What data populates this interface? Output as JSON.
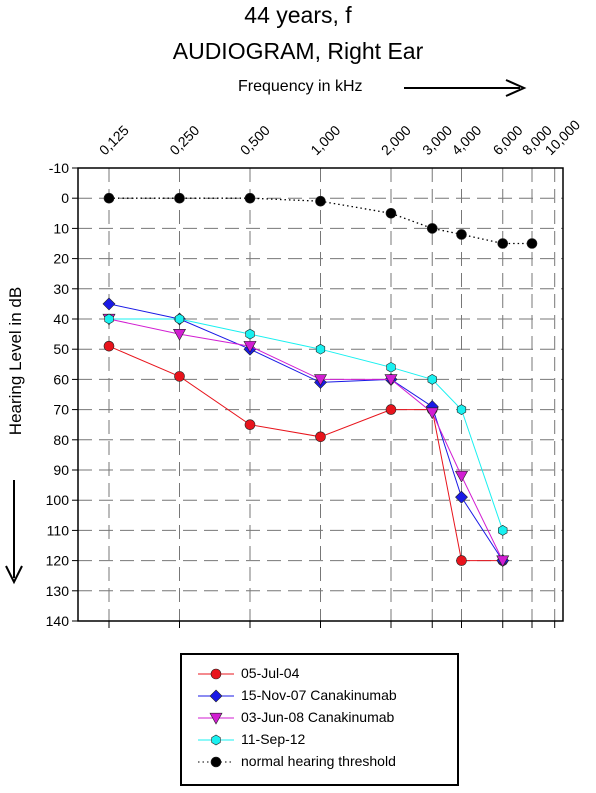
{
  "chart_data": {
    "type": "line",
    "title": "44 years, f",
    "subtitle": "AUDIOGRAM, Right Ear",
    "xlabel": "Frequency in kHz",
    "ylabel": "Hearing Level in dB",
    "x_scale": "log",
    "y_reversed": true,
    "ylim": [
      -10,
      140
    ],
    "yticks": [
      -10,
      0,
      10,
      20,
      30,
      40,
      50,
      60,
      70,
      80,
      90,
      100,
      110,
      120,
      130,
      140
    ],
    "xticks": [
      0.125,
      0.25,
      0.5,
      1,
      2,
      3,
      4,
      6,
      8,
      10
    ],
    "xtick_labels": [
      "0,125",
      "0,250",
      "0,500",
      "1,000",
      "2,000",
      "3,000",
      "4,000",
      "6,000",
      "8,000",
      "10,000"
    ],
    "grid": true,
    "legend_position": "bottom",
    "series": [
      {
        "name": "05-Jul-04",
        "color": "#e8141c",
        "marker": "circle",
        "x": [
          0.125,
          0.25,
          0.5,
          1,
          2,
          3,
          4,
          6
        ],
        "y": [
          49,
          59,
          75,
          79,
          70,
          70,
          120,
          120
        ]
      },
      {
        "name": "15-Nov-07 Canakinumab",
        "color": "#1a1ae6",
        "marker": "diamond",
        "x": [
          0.125,
          0.25,
          0.5,
          1,
          2,
          3,
          4,
          6
        ],
        "y": [
          35,
          40,
          50,
          61,
          60,
          69,
          99,
          120
        ]
      },
      {
        "name": "03-Jun-08 Canakinumab",
        "color": "#d21ed2",
        "marker": "triangle-down",
        "x": [
          0.125,
          0.25,
          0.5,
          1,
          2,
          3,
          4,
          6
        ],
        "y": [
          40,
          45,
          49,
          60,
          60,
          71,
          92,
          120
        ]
      },
      {
        "name": "11-Sep-12",
        "color": "#19f0f0",
        "marker": "hexagon",
        "x": [
          0.125,
          0.25,
          0.5,
          1,
          2,
          3,
          4,
          6
        ],
        "y": [
          40,
          40,
          45,
          50,
          56,
          60,
          70,
          110
        ]
      },
      {
        "name": "normal hearing threshold",
        "color": "#000000",
        "marker": "circle",
        "line": "dotted",
        "x": [
          0.125,
          0.25,
          0.5,
          1,
          2,
          3,
          4,
          6,
          8
        ],
        "y": [
          0,
          0,
          0,
          1,
          5,
          10,
          12,
          15,
          15
        ]
      }
    ]
  }
}
